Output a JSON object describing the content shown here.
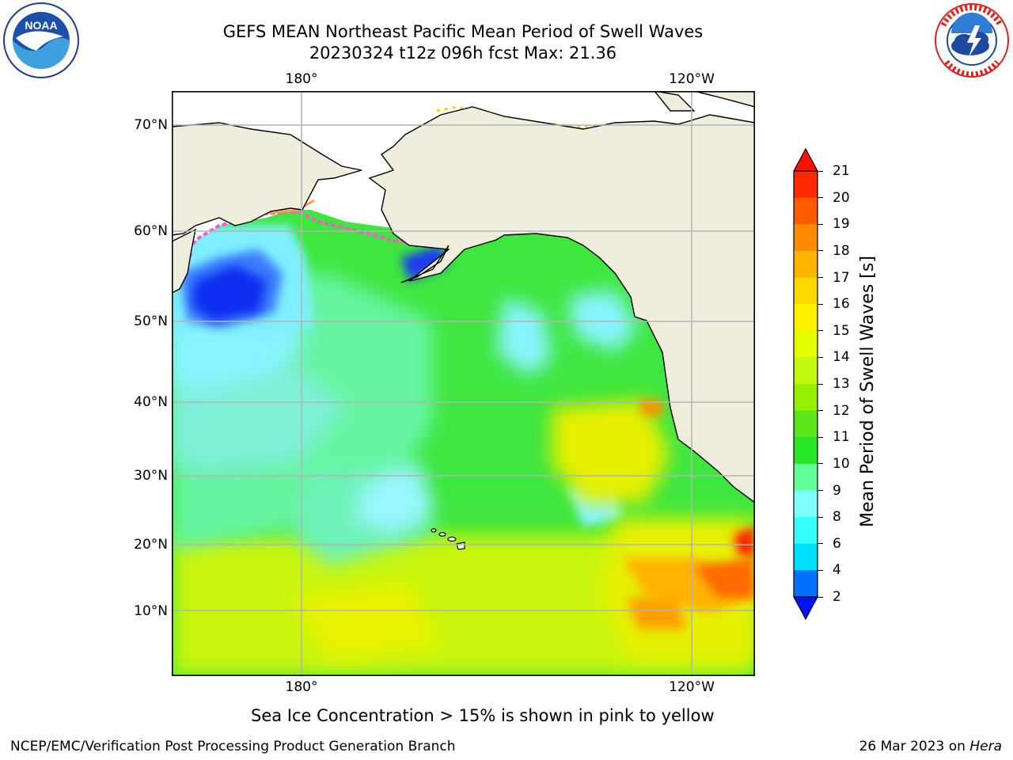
{
  "header": {
    "title_line1": "GEFS MEAN Northeast Pacific Mean Period of Swell Waves",
    "title_line2": "20230324 t12z 096h fcst   Max: 21.36"
  },
  "logos": {
    "left": "noaa-logo",
    "right": "national-weather-service-logo"
  },
  "map": {
    "top_lon_labels": [
      "180°",
      "120°W"
    ],
    "bottom_lon_labels": [
      "180°",
      "120°W"
    ],
    "lat_labels": [
      "70°N",
      "60°N",
      "50°N",
      "40°N",
      "30°N",
      "20°N",
      "10°N"
    ],
    "land_color": "#efeddc",
    "grid_color": "#b4b4b4"
  },
  "colorbar": {
    "label": "Mean Period of Swell Waves [s]",
    "ticks": [
      "21",
      "20",
      "19",
      "18",
      "17",
      "16",
      "15",
      "14",
      "13",
      "12",
      "11",
      "10",
      "9",
      "8",
      "6",
      "4",
      "2"
    ],
    "colors_top_to_bottom": [
      "#ff2a00",
      "#ff5a00",
      "#ff8a00",
      "#ffb400",
      "#ffd800",
      "#fff200",
      "#e4ff00",
      "#c2f80c",
      "#96f000",
      "#5ae61a",
      "#28e628",
      "#63ff99",
      "#80ffff",
      "#35ffff",
      "#00dfff",
      "#0070ff"
    ],
    "extend_top_color": "#ff1000",
    "extend_bottom_color": "#0012ff"
  },
  "notes": {
    "sea_ice": "Sea Ice Concentration > 15% is shown in pink to yellow"
  },
  "footer": {
    "left": "NCEP/EMC/Verification Post Processing Product Generation Branch",
    "date": "26 Mar 2023 on ",
    "machine": "Hera"
  }
}
